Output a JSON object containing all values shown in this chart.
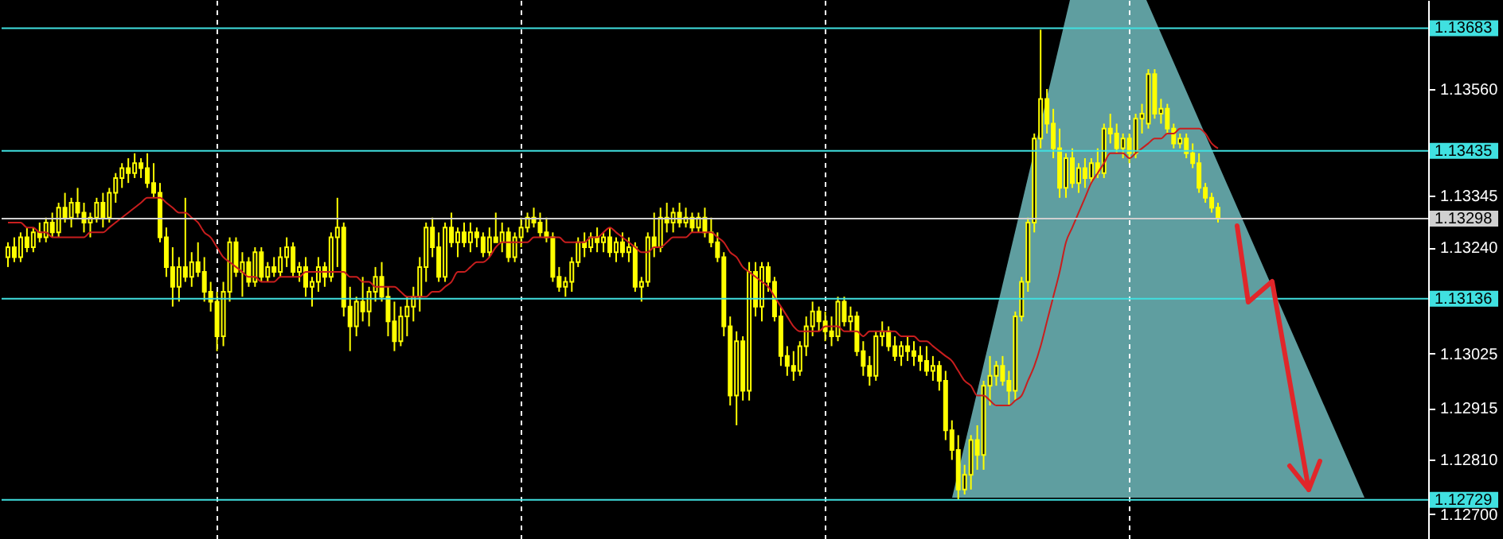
{
  "chart_data": {
    "type": "candlestick",
    "categories": [
      null,
      null,
      null,
      null,
      null,
      null,
      null,
      null,
      null,
      null,
      null,
      null,
      null,
      null,
      null,
      null,
      null,
      null,
      null,
      null,
      null,
      null,
      null,
      null,
      null,
      null,
      null,
      null,
      null,
      null,
      null,
      null,
      null,
      null,
      null,
      null,
      null,
      null,
      null,
      null,
      null,
      null,
      null,
      null,
      null,
      null,
      null,
      null,
      null,
      null,
      null,
      null,
      null,
      null,
      null,
      null,
      null,
      null,
      null,
      null,
      null,
      null,
      null,
      null,
      null,
      null,
      null,
      null,
      null,
      null,
      null,
      null,
      null,
      null,
      null,
      null,
      null,
      null,
      null,
      null,
      null,
      null,
      null,
      null,
      null,
      null,
      null,
      null,
      null,
      null,
      null,
      null,
      null,
      null,
      null,
      null,
      null,
      null,
      null,
      null,
      null,
      null,
      null,
      null,
      null,
      null,
      null,
      null,
      null,
      null,
      null,
      null,
      null,
      null,
      null,
      null,
      null,
      null,
      null,
      null,
      null,
      null,
      null,
      null,
      null,
      null,
      null,
      null,
      null,
      null,
      null,
      null,
      null,
      null,
      null,
      null,
      null,
      null,
      null,
      null,
      null,
      null,
      null,
      null,
      null,
      null,
      null,
      null,
      null,
      null,
      null,
      null,
      null,
      null,
      null,
      null,
      null,
      null,
      null,
      null,
      null,
      null,
      null,
      null,
      null,
      null,
      null,
      null,
      null,
      null,
      null,
      null,
      null,
      null,
      null,
      null,
      null,
      null,
      null,
      null,
      null,
      null,
      null,
      null,
      null,
      null,
      null,
      null,
      null,
      null,
      null,
      null
    ],
    "series": [
      {
        "type": "candlestick",
        "color": "#ffff00",
        "ohlc": [
          [
            1.1322,
            1.1325,
            1.132,
            1.1324
          ],
          [
            1.1324,
            1.1326,
            1.1321,
            1.1322
          ],
          [
            1.1322,
            1.1327,
            1.1321,
            1.1326
          ],
          [
            1.1326,
            1.1328,
            1.1323,
            1.1324
          ],
          [
            1.1324,
            1.1328,
            1.1323,
            1.1327
          ],
          [
            1.1327,
            1.1329,
            1.1325,
            1.1326
          ],
          [
            1.1326,
            1.133,
            1.1325,
            1.1329
          ],
          [
            1.1329,
            1.1331,
            1.1326,
            1.1327
          ],
          [
            1.1327,
            1.1333,
            1.1326,
            1.1332
          ],
          [
            1.1332,
            1.1335,
            1.1329,
            1.133
          ],
          [
            1.133,
            1.1334,
            1.1328,
            1.1333
          ],
          [
            1.1333,
            1.1336,
            1.133,
            1.1331
          ],
          [
            1.1331,
            1.1333,
            1.1327,
            1.1329
          ],
          [
            1.1329,
            1.1331,
            1.1326,
            1.133
          ],
          [
            1.133,
            1.1334,
            1.1329,
            1.1333
          ],
          [
            1.1333,
            1.1335,
            1.1328,
            1.133
          ],
          [
            1.133,
            1.1336,
            1.1329,
            1.1335
          ],
          [
            1.1335,
            1.1339,
            1.1333,
            1.1338
          ],
          [
            1.1338,
            1.1341,
            1.1336,
            1.134
          ],
          [
            1.134,
            1.1342,
            1.1337,
            1.1339
          ],
          [
            1.1339,
            1.1343,
            1.1338,
            1.1341
          ],
          [
            1.1341,
            1.1342,
            1.1338,
            1.134
          ],
          [
            1.134,
            1.1343,
            1.1336,
            1.1337
          ],
          [
            1.1337,
            1.1341,
            1.1334,
            1.1335
          ],
          [
            1.1335,
            1.1337,
            1.1325,
            1.1326
          ],
          [
            1.1326,
            1.1328,
            1.1318,
            1.132
          ],
          [
            1.132,
            1.1324,
            1.1312,
            1.1316
          ],
          [
            1.1316,
            1.1322,
            1.1313,
            1.132
          ],
          [
            1.132,
            1.1334,
            1.1317,
            1.1318
          ],
          [
            1.1318,
            1.1323,
            1.1316,
            1.1321
          ],
          [
            1.1321,
            1.1325,
            1.1318,
            1.1319
          ],
          [
            1.1319,
            1.1322,
            1.1313,
            1.1315
          ],
          [
            1.1315,
            1.1317,
            1.1311,
            1.1313
          ],
          [
            1.1313,
            1.1315,
            1.1303,
            1.1306
          ],
          [
            1.1306,
            1.1317,
            1.1304,
            1.1315
          ],
          [
            1.1315,
            1.1326,
            1.1313,
            1.1325
          ],
          [
            1.1325,
            1.1326,
            1.1318,
            1.1319
          ],
          [
            1.1319,
            1.1323,
            1.1314,
            1.1321
          ],
          [
            1.1321,
            1.1322,
            1.1316,
            1.1317
          ],
          [
            1.1317,
            1.1324,
            1.1316,
            1.1323
          ],
          [
            1.1323,
            1.1324,
            1.1317,
            1.1318
          ],
          [
            1.1318,
            1.1321,
            1.1317,
            1.132
          ],
          [
            1.132,
            1.1322,
            1.1318,
            1.1319
          ],
          [
            1.1319,
            1.1324,
            1.1318,
            1.1322
          ],
          [
            1.1322,
            1.1326,
            1.132,
            1.1324
          ],
          [
            1.1324,
            1.1325,
            1.1318,
            1.1319
          ],
          [
            1.1319,
            1.1321,
            1.1317,
            1.132
          ],
          [
            1.132,
            1.1322,
            1.1314,
            1.1316
          ],
          [
            1.1316,
            1.1318,
            1.1312,
            1.1317
          ],
          [
            1.1317,
            1.1322,
            1.1315,
            1.132
          ],
          [
            1.132,
            1.1321,
            1.1316,
            1.1318
          ],
          [
            1.1318,
            1.1327,
            1.1317,
            1.1326
          ],
          [
            1.1326,
            1.1334,
            1.132,
            1.1328
          ],
          [
            1.1328,
            1.1329,
            1.131,
            1.1312
          ],
          [
            1.1312,
            1.1316,
            1.1303,
            1.1308
          ],
          [
            1.1308,
            1.1314,
            1.1306,
            1.1313
          ],
          [
            1.1313,
            1.1318,
            1.1309,
            1.1311
          ],
          [
            1.1311,
            1.1316,
            1.1308,
            1.1315
          ],
          [
            1.1315,
            1.132,
            1.1313,
            1.1318
          ],
          [
            1.1318,
            1.1321,
            1.1313,
            1.1314
          ],
          [
            1.1314,
            1.1316,
            1.1306,
            1.1309
          ],
          [
            1.1309,
            1.1313,
            1.1303,
            1.1305
          ],
          [
            1.1305,
            1.1312,
            1.1304,
            1.131
          ],
          [
            1.131,
            1.1314,
            1.1306,
            1.1312
          ],
          [
            1.1312,
            1.1316,
            1.1309,
            1.1314
          ],
          [
            1.1314,
            1.1322,
            1.1311,
            1.132
          ],
          [
            1.132,
            1.1329,
            1.1317,
            1.1328
          ],
          [
            1.1328,
            1.133,
            1.1322,
            1.1324
          ],
          [
            1.1324,
            1.1327,
            1.1317,
            1.1318
          ],
          [
            1.1318,
            1.1329,
            1.1317,
            1.1328
          ],
          [
            1.1328,
            1.1331,
            1.1324,
            1.1325
          ],
          [
            1.1325,
            1.1328,
            1.1322,
            1.1327
          ],
          [
            1.1327,
            1.1329,
            1.1324,
            1.1325
          ],
          [
            1.1325,
            1.1329,
            1.1323,
            1.1327
          ],
          [
            1.1327,
            1.1328,
            1.1324,
            1.1326
          ],
          [
            1.1326,
            1.1327,
            1.1322,
            1.1323
          ],
          [
            1.1323,
            1.1328,
            1.1322,
            1.1326
          ],
          [
            1.1326,
            1.1331,
            1.1325,
            1.1325
          ],
          [
            1.1325,
            1.1329,
            1.1323,
            1.1327
          ],
          [
            1.1327,
            1.1328,
            1.1321,
            1.1322
          ],
          [
            1.1322,
            1.1327,
            1.1321,
            1.1326
          ],
          [
            1.1326,
            1.133,
            1.1324,
            1.1328
          ],
          [
            1.1328,
            1.1331,
            1.1327,
            1.133
          ],
          [
            1.133,
            1.1332,
            1.1328,
            1.1329
          ],
          [
            1.1329,
            1.1331,
            1.1326,
            1.1327
          ],
          [
            1.1327,
            1.133,
            1.1325,
            1.1326
          ],
          [
            1.1326,
            1.1327,
            1.1317,
            1.1318
          ],
          [
            1.1318,
            1.132,
            1.1315,
            1.1316
          ],
          [
            1.1316,
            1.1318,
            1.1314,
            1.1317
          ],
          [
            1.1317,
            1.1322,
            1.1315,
            1.1321
          ],
          [
            1.1321,
            1.1326,
            1.132,
            1.1325
          ],
          [
            1.1325,
            1.1327,
            1.1322,
            1.1324
          ],
          [
            1.1324,
            1.1327,
            1.1323,
            1.1326
          ],
          [
            1.1326,
            1.1328,
            1.1323,
            1.1325
          ],
          [
            1.1325,
            1.1327,
            1.1323,
            1.1326
          ],
          [
            1.1326,
            1.1328,
            1.1322,
            1.1323
          ],
          [
            1.1323,
            1.1326,
            1.1321,
            1.1325
          ],
          [
            1.1325,
            1.1327,
            1.1322,
            1.1323
          ],
          [
            1.1323,
            1.1326,
            1.1321,
            1.1324
          ],
          [
            1.1324,
            1.1325,
            1.1315,
            1.1316
          ],
          [
            1.1316,
            1.1318,
            1.1313,
            1.1317
          ],
          [
            1.1317,
            1.1327,
            1.1316,
            1.1326
          ],
          [
            1.1326,
            1.1331,
            1.1322,
            1.1324
          ],
          [
            1.1324,
            1.1332,
            1.1323,
            1.133
          ],
          [
            1.133,
            1.1333,
            1.1327,
            1.1329
          ],
          [
            1.1329,
            1.1332,
            1.1327,
            1.1331
          ],
          [
            1.1331,
            1.1333,
            1.1328,
            1.1329
          ],
          [
            1.1329,
            1.1332,
            1.1328,
            1.133
          ],
          [
            1.133,
            1.1331,
            1.1327,
            1.1328
          ],
          [
            1.1328,
            1.1331,
            1.1327,
            1.133
          ],
          [
            1.133,
            1.1332,
            1.1326,
            1.1327
          ],
          [
            1.1327,
            1.133,
            1.1324,
            1.1325
          ],
          [
            1.1325,
            1.1327,
            1.1321,
            1.1322
          ],
          [
            1.1322,
            1.1323,
            1.1306,
            1.1308
          ],
          [
            1.1308,
            1.131,
            1.1292,
            1.1294
          ],
          [
            1.1294,
            1.1307,
            1.1288,
            1.1305
          ],
          [
            1.1305,
            1.1306,
            1.1293,
            1.1295
          ],
          [
            1.1295,
            1.1321,
            1.1293,
            1.1319
          ],
          [
            1.1319,
            1.1321,
            1.131,
            1.1312
          ],
          [
            1.1312,
            1.1321,
            1.1309,
            1.132
          ],
          [
            1.132,
            1.1321,
            1.1315,
            1.1317
          ],
          [
            1.1317,
            1.1318,
            1.1309,
            1.131
          ],
          [
            1.131,
            1.1312,
            1.13,
            1.1302
          ],
          [
            1.1302,
            1.1304,
            1.1298,
            1.13
          ],
          [
            1.13,
            1.1303,
            1.1297,
            1.1299
          ],
          [
            1.1299,
            1.1305,
            1.1298,
            1.1304
          ],
          [
            1.1304,
            1.131,
            1.1302,
            1.1308
          ],
          [
            1.1308,
            1.1313,
            1.1306,
            1.1311
          ],
          [
            1.1311,
            1.1312,
            1.1307,
            1.1309
          ],
          [
            1.1309,
            1.1311,
            1.1305,
            1.1307
          ],
          [
            1.1307,
            1.131,
            1.1304,
            1.1306
          ],
          [
            1.1306,
            1.1314,
            1.1305,
            1.1313
          ],
          [
            1.1313,
            1.1314,
            1.1308,
            1.1309
          ],
          [
            1.1309,
            1.1312,
            1.1307,
            1.131
          ],
          [
            1.131,
            1.1311,
            1.1302,
            1.1303
          ],
          [
            1.1303,
            1.1305,
            1.1298,
            1.13
          ],
          [
            1.13,
            1.1302,
            1.1296,
            1.1298
          ],
          [
            1.1298,
            1.1307,
            1.1297,
            1.1306
          ],
          [
            1.1306,
            1.1309,
            1.1304,
            1.1307
          ],
          [
            1.1307,
            1.1308,
            1.1303,
            1.1304
          ],
          [
            1.1304,
            1.1306,
            1.1301,
            1.1302
          ],
          [
            1.1302,
            1.1305,
            1.13,
            1.1304
          ],
          [
            1.1304,
            1.1306,
            1.1301,
            1.1303
          ],
          [
            1.1303,
            1.1305,
            1.13,
            1.1302
          ],
          [
            1.1302,
            1.1304,
            1.1299,
            1.1301
          ],
          [
            1.1301,
            1.1304,
            1.1298,
            1.1299
          ],
          [
            1.1299,
            1.1302,
            1.1297,
            1.13
          ],
          [
            1.13,
            1.1301,
            1.1295,
            1.1297
          ],
          [
            1.1297,
            1.1299,
            1.1285,
            1.1287
          ],
          [
            1.1287,
            1.1289,
            1.1281,
            1.1283
          ],
          [
            1.1283,
            1.1286,
            1.1273,
            1.1275
          ],
          [
            1.1275,
            1.128,
            1.1274,
            1.1278
          ],
          [
            1.1278,
            1.1286,
            1.1275,
            1.1285
          ],
          [
            1.1285,
            1.1288,
            1.1279,
            1.1282
          ],
          [
            1.1282,
            1.1297,
            1.1279,
            1.1296
          ],
          [
            1.1296,
            1.1302,
            1.1292,
            1.1298
          ],
          [
            1.1298,
            1.1301,
            1.1296,
            1.13
          ],
          [
            1.13,
            1.1302,
            1.1296,
            1.1297
          ],
          [
            1.1297,
            1.1299,
            1.1292,
            1.1295
          ],
          [
            1.1295,
            1.1311,
            1.1293,
            1.131
          ],
          [
            1.131,
            1.1318,
            1.1309,
            1.1317
          ],
          [
            1.1317,
            1.133,
            1.1315,
            1.1329
          ],
          [
            1.1329,
            1.1347,
            1.1327,
            1.1346
          ],
          [
            1.1346,
            1.1368,
            1.1344,
            1.1354
          ],
          [
            1.1354,
            1.1356,
            1.1347,
            1.1349
          ],
          [
            1.1349,
            1.1352,
            1.1342,
            1.1344
          ],
          [
            1.1344,
            1.1348,
            1.1334,
            1.1336
          ],
          [
            1.1336,
            1.1343,
            1.1334,
            1.1342
          ],
          [
            1.1342,
            1.1344,
            1.1336,
            1.1337
          ],
          [
            1.1337,
            1.1341,
            1.1335,
            1.134
          ],
          [
            1.134,
            1.1342,
            1.1336,
            1.1338
          ],
          [
            1.1338,
            1.1342,
            1.1337,
            1.1341
          ],
          [
            1.1341,
            1.1344,
            1.1338,
            1.1339
          ],
          [
            1.1339,
            1.1349,
            1.1338,
            1.1348
          ],
          [
            1.1348,
            1.1351,
            1.1345,
            1.1347
          ],
          [
            1.1347,
            1.1349,
            1.1343,
            1.1344
          ],
          [
            1.1344,
            1.1347,
            1.1342,
            1.1346
          ],
          [
            1.1346,
            1.1347,
            1.1341,
            1.1343
          ],
          [
            1.1343,
            1.1351,
            1.1342,
            1.135
          ],
          [
            1.135,
            1.1353,
            1.1347,
            1.1351
          ],
          [
            1.1349,
            1.136,
            1.1348,
            1.1359
          ],
          [
            1.1359,
            1.136,
            1.135,
            1.1351
          ],
          [
            1.1351,
            1.1354,
            1.1349,
            1.1352
          ],
          [
            1.1352,
            1.1353,
            1.1347,
            1.1348
          ],
          [
            1.1348,
            1.1349,
            1.1344,
            1.1345
          ],
          [
            1.1345,
            1.1347,
            1.1344,
            1.1346
          ],
          [
            1.1346,
            1.1347,
            1.1342,
            1.1343
          ],
          [
            1.1343,
            1.1345,
            1.134,
            1.1341
          ],
          [
            1.1341,
            1.1343,
            1.1335,
            1.1336
          ],
          [
            1.1336,
            1.1337,
            1.1333,
            1.1334
          ],
          [
            1.1334,
            1.1335,
            1.1331,
            1.1332
          ],
          [
            1.1332,
            1.1333,
            1.1329,
            1.133
          ]
        ]
      },
      {
        "type": "line",
        "color": "#c81e1e",
        "values": [
          1.1329,
          1.1329,
          1.1329,
          1.1328,
          1.1328,
          1.1327,
          1.1327,
          1.1326,
          1.1326,
          1.1326,
          1.1326,
          1.1326,
          1.1326,
          1.1327,
          1.1327,
          1.1327,
          1.1328,
          1.1329,
          1.133,
          1.1331,
          1.1332,
          1.1333,
          1.1334,
          1.1334,
          1.1334,
          1.1333,
          1.1332,
          1.1331,
          1.1331,
          1.133,
          1.1329,
          1.1327,
          1.1326,
          1.1324,
          1.1322,
          1.1321,
          1.132,
          1.1319,
          1.1318,
          1.1318,
          1.1317,
          1.1317,
          1.1317,
          1.1318,
          1.1318,
          1.1318,
          1.1318,
          1.1319,
          1.1319,
          1.1319,
          1.1319,
          1.1319,
          1.1319,
          1.1319,
          1.1318,
          1.1318,
          1.1317,
          1.1317,
          1.1316,
          1.1316,
          1.1316,
          1.1316,
          1.1315,
          1.1314,
          1.1314,
          1.1314,
          1.1314,
          1.1315,
          1.1315,
          1.1316,
          1.1317,
          1.1319,
          1.1319,
          1.132,
          1.1321,
          1.1321,
          1.1322,
          1.1324,
          1.1325,
          1.1325,
          1.1325,
          1.1325,
          1.1325,
          1.1326,
          1.1326,
          1.1326,
          1.1326,
          1.1326,
          1.1325,
          1.1325,
          1.1325,
          1.1325,
          1.1326,
          1.1326,
          1.1327,
          1.1328,
          1.1327,
          1.1326,
          1.1325,
          1.1324,
          1.1323,
          1.1323,
          1.1324,
          1.1324,
          1.1325,
          1.1326,
          1.1326,
          1.1326,
          1.1327,
          1.1327,
          1.1327,
          1.1327,
          1.1326,
          1.1325,
          1.1323,
          1.1322,
          1.132,
          1.1319,
          1.1318,
          1.1317,
          1.1316,
          1.1314,
          1.1312,
          1.131,
          1.1308,
          1.1307,
          1.1307,
          1.1307,
          1.1307,
          1.1308,
          1.1308,
          1.1308,
          1.1307,
          1.1307,
          1.1307,
          1.1306,
          1.1307,
          1.1307,
          1.1307,
          1.1307,
          1.1307,
          1.1306,
          1.1306,
          1.1306,
          1.1305,
          1.1305,
          1.1304,
          1.1303,
          1.1302,
          1.1301,
          1.1299,
          1.1297,
          1.1296,
          1.1294,
          1.1294,
          1.1293,
          1.1292,
          1.1292,
          1.1292,
          1.1293,
          1.1294,
          1.1297,
          1.13,
          1.1304,
          1.1309,
          1.1314,
          1.1319,
          1.1325,
          1.1328,
          1.1331,
          1.1334,
          1.1337,
          1.1339,
          1.1341,
          1.1343,
          1.1343,
          1.1343,
          1.1342,
          1.1343,
          1.1344,
          1.1345,
          1.1346,
          1.1346,
          1.1347,
          1.1347,
          1.1348,
          1.1348,
          1.1348,
          1.1348,
          1.1347,
          1.1345,
          1.1344
        ]
      }
    ],
    "ylim": [
      1.1265,
      1.1374
    ],
    "yticks": [
      {
        "value": 1.1356,
        "label": "1.13560"
      },
      1.13345,
      {
        "value": 1.1324,
        "label": "1.13240"
      },
      1.13025,
      1.12915,
      {
        "value": 1.1281,
        "label": "1.12810"
      },
      {
        "value": 1.127,
        "label": "1.12700"
      }
    ],
    "ref_lines": [
      {
        "axis": "y",
        "value": 1.13683,
        "label": "1.13683",
        "color": "#40e0e0"
      },
      {
        "axis": "y",
        "value": 1.13435,
        "label": "1.13435",
        "color": "#40e0e0"
      },
      {
        "axis": "y",
        "value": 1.13298,
        "label": "1.13298",
        "color": "#d0d0d0"
      },
      {
        "axis": "y",
        "value": 1.13136,
        "label": "1.13136",
        "color": "#40e0e0"
      },
      {
        "axis": "y",
        "value": 1.12729,
        "label": "1.12729",
        "color": "#40e0e0"
      }
    ],
    "grid": "x",
    "tick_labels": "y"
  }
}
